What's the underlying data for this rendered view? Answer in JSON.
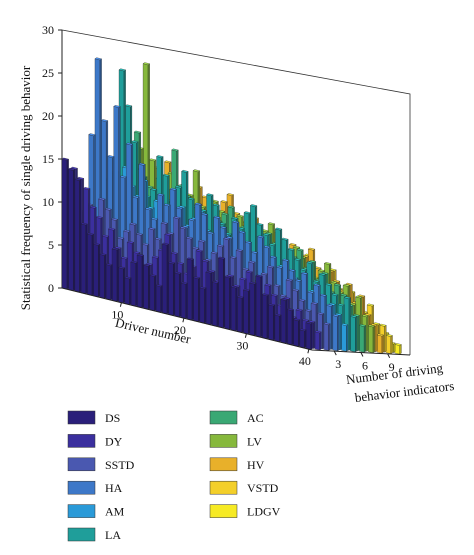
{
  "chart_data": {
    "type": "bar3d",
    "zlabel": "Statistical frequency of single driving behavior",
    "xlabel": "Driver number",
    "ylabel": [
      "Number of driving",
      "behavior indicators"
    ],
    "zlim": [
      0,
      30
    ],
    "z_ticks": [
      0,
      5,
      10,
      15,
      20,
      25,
      30
    ],
    "driver_ticks": [
      10,
      20,
      30,
      40
    ],
    "indicator_ticks": [
      3,
      6,
      9
    ],
    "drivers": 40,
    "indicators": [
      "DS",
      "DY",
      "SSTD",
      "HA",
      "AM",
      "LA",
      "AC",
      "LV",
      "HV",
      "VSTD",
      "LDGV"
    ],
    "colors": [
      "#2a1f7a",
      "#3b2f9e",
      "#4a58b0",
      "#3d78c8",
      "#2a9ad8",
      "#1f9e9a",
      "#3aa874",
      "#86b83c",
      "#e8b02a",
      "#f3cf2a",
      "#f6ea24"
    ],
    "legend_layout": "two columns below chart",
    "series": [
      {
        "name": "DS",
        "values": [
          15,
          14,
          13,
          8,
          7,
          6,
          5,
          4,
          6,
          4,
          3,
          5,
          6,
          5,
          4,
          3,
          8,
          6,
          5,
          4,
          7,
          5,
          4,
          6,
          5,
          8,
          6,
          5,
          4,
          5,
          6,
          7,
          5,
          4,
          3,
          5,
          4,
          3,
          2,
          3
        ]
      },
      {
        "name": "DY",
        "values": [
          14,
          13,
          12,
          10,
          9,
          7,
          8,
          6,
          5,
          7,
          6,
          4,
          5,
          6,
          7,
          9,
          7,
          6,
          5,
          6,
          8,
          7,
          6,
          5,
          4,
          6,
          5,
          6,
          7,
          5,
          4,
          6,
          5,
          4,
          5,
          3,
          4,
          3,
          3,
          2
        ]
      },
      {
        "name": "SSTD",
        "values": [
          9,
          10,
          8,
          11,
          10,
          9,
          7,
          8,
          9,
          8,
          7,
          9,
          8,
          10,
          9,
          11,
          10,
          9,
          8,
          9,
          7,
          8,
          9,
          10,
          8,
          9,
          7,
          8,
          6,
          7,
          8,
          6,
          5,
          7,
          6,
          5,
          4,
          5,
          4,
          3
        ]
      },
      {
        "name": "HA",
        "values": [
          18,
          27,
          20,
          16,
          22,
          14,
          18,
          12,
          16,
          11,
          10,
          13,
          12,
          14,
          12,
          10,
          11,
          13,
          12,
          10,
          12,
          11,
          10,
          12,
          11,
          10,
          9,
          11,
          10,
          9,
          8,
          9,
          8,
          7,
          8,
          6,
          7,
          6,
          5,
          4
        ]
      },
      {
        "name": "AM",
        "values": [
          11,
          13,
          14,
          12,
          15,
          13,
          12,
          14,
          11,
          12,
          10,
          9,
          11,
          12,
          10,
          11,
          12,
          10,
          9,
          8,
          10,
          9,
          8,
          9,
          7,
          8,
          9,
          8,
          7,
          8,
          6,
          7,
          6,
          5,
          6,
          5,
          4,
          5,
          4,
          3
        ]
      },
      {
        "name": "LA",
        "values": [
          12,
          14,
          26,
          22,
          18,
          15,
          12,
          13,
          17,
          15,
          12,
          14,
          16,
          13,
          11,
          12,
          14,
          13,
          11,
          10,
          12,
          11,
          13,
          14,
          12,
          11,
          10,
          12,
          11,
          10,
          9,
          8,
          9,
          7,
          8,
          7,
          6,
          5,
          6,
          4
        ]
      },
      {
        "name": "AC",
        "values": [
          10,
          11,
          12,
          19,
          14,
          13,
          12,
          11,
          12,
          18,
          14,
          13,
          12,
          11,
          10,
          9,
          11,
          12,
          13,
          10,
          11,
          12,
          10,
          9,
          11,
          10,
          9,
          8,
          9,
          10,
          8,
          9,
          7,
          8,
          6,
          7,
          6,
          5,
          4,
          3
        ]
      },
      {
        "name": "LV",
        "values": [
          13,
          15,
          17,
          27,
          16,
          14,
          13,
          15,
          12,
          14,
          13,
          16,
          12,
          11,
          13,
          12,
          11,
          10,
          12,
          11,
          10,
          9,
          11,
          12,
          10,
          9,
          8,
          10,
          9,
          8,
          7,
          8,
          9,
          7,
          6,
          7,
          5,
          6,
          4,
          3
        ]
      },
      {
        "name": "HV",
        "values": [
          10,
          12,
          13,
          15,
          14,
          16,
          12,
          13,
          11,
          12,
          14,
          13,
          12,
          11,
          13,
          14,
          12,
          10,
          11,
          12,
          10,
          9,
          11,
          10,
          9,
          10,
          8,
          9,
          10,
          8,
          7,
          8,
          7,
          6,
          7,
          5,
          6,
          4,
          3,
          2
        ]
      },
      {
        "name": "VSTD",
        "values": [
          8,
          9,
          10,
          11,
          9,
          12,
          11,
          10,
          9,
          11,
          10,
          9,
          10,
          8,
          9,
          10,
          11,
          9,
          8,
          9,
          10,
          8,
          9,
          8,
          7,
          8,
          9,
          7,
          6,
          7,
          8,
          6,
          5,
          6,
          5,
          4,
          5,
          3,
          3,
          2
        ]
      },
      {
        "name": "LDGV",
        "values": [
          5,
          6,
          7,
          8,
          7,
          6,
          8,
          7,
          6,
          7,
          8,
          6,
          7,
          6,
          5,
          6,
          7,
          5,
          6,
          5,
          4,
          5,
          6,
          4,
          5,
          4,
          5,
          3,
          4,
          4,
          3,
          4,
          3,
          2,
          3,
          2,
          2,
          2,
          1,
          1
        ]
      }
    ]
  }
}
